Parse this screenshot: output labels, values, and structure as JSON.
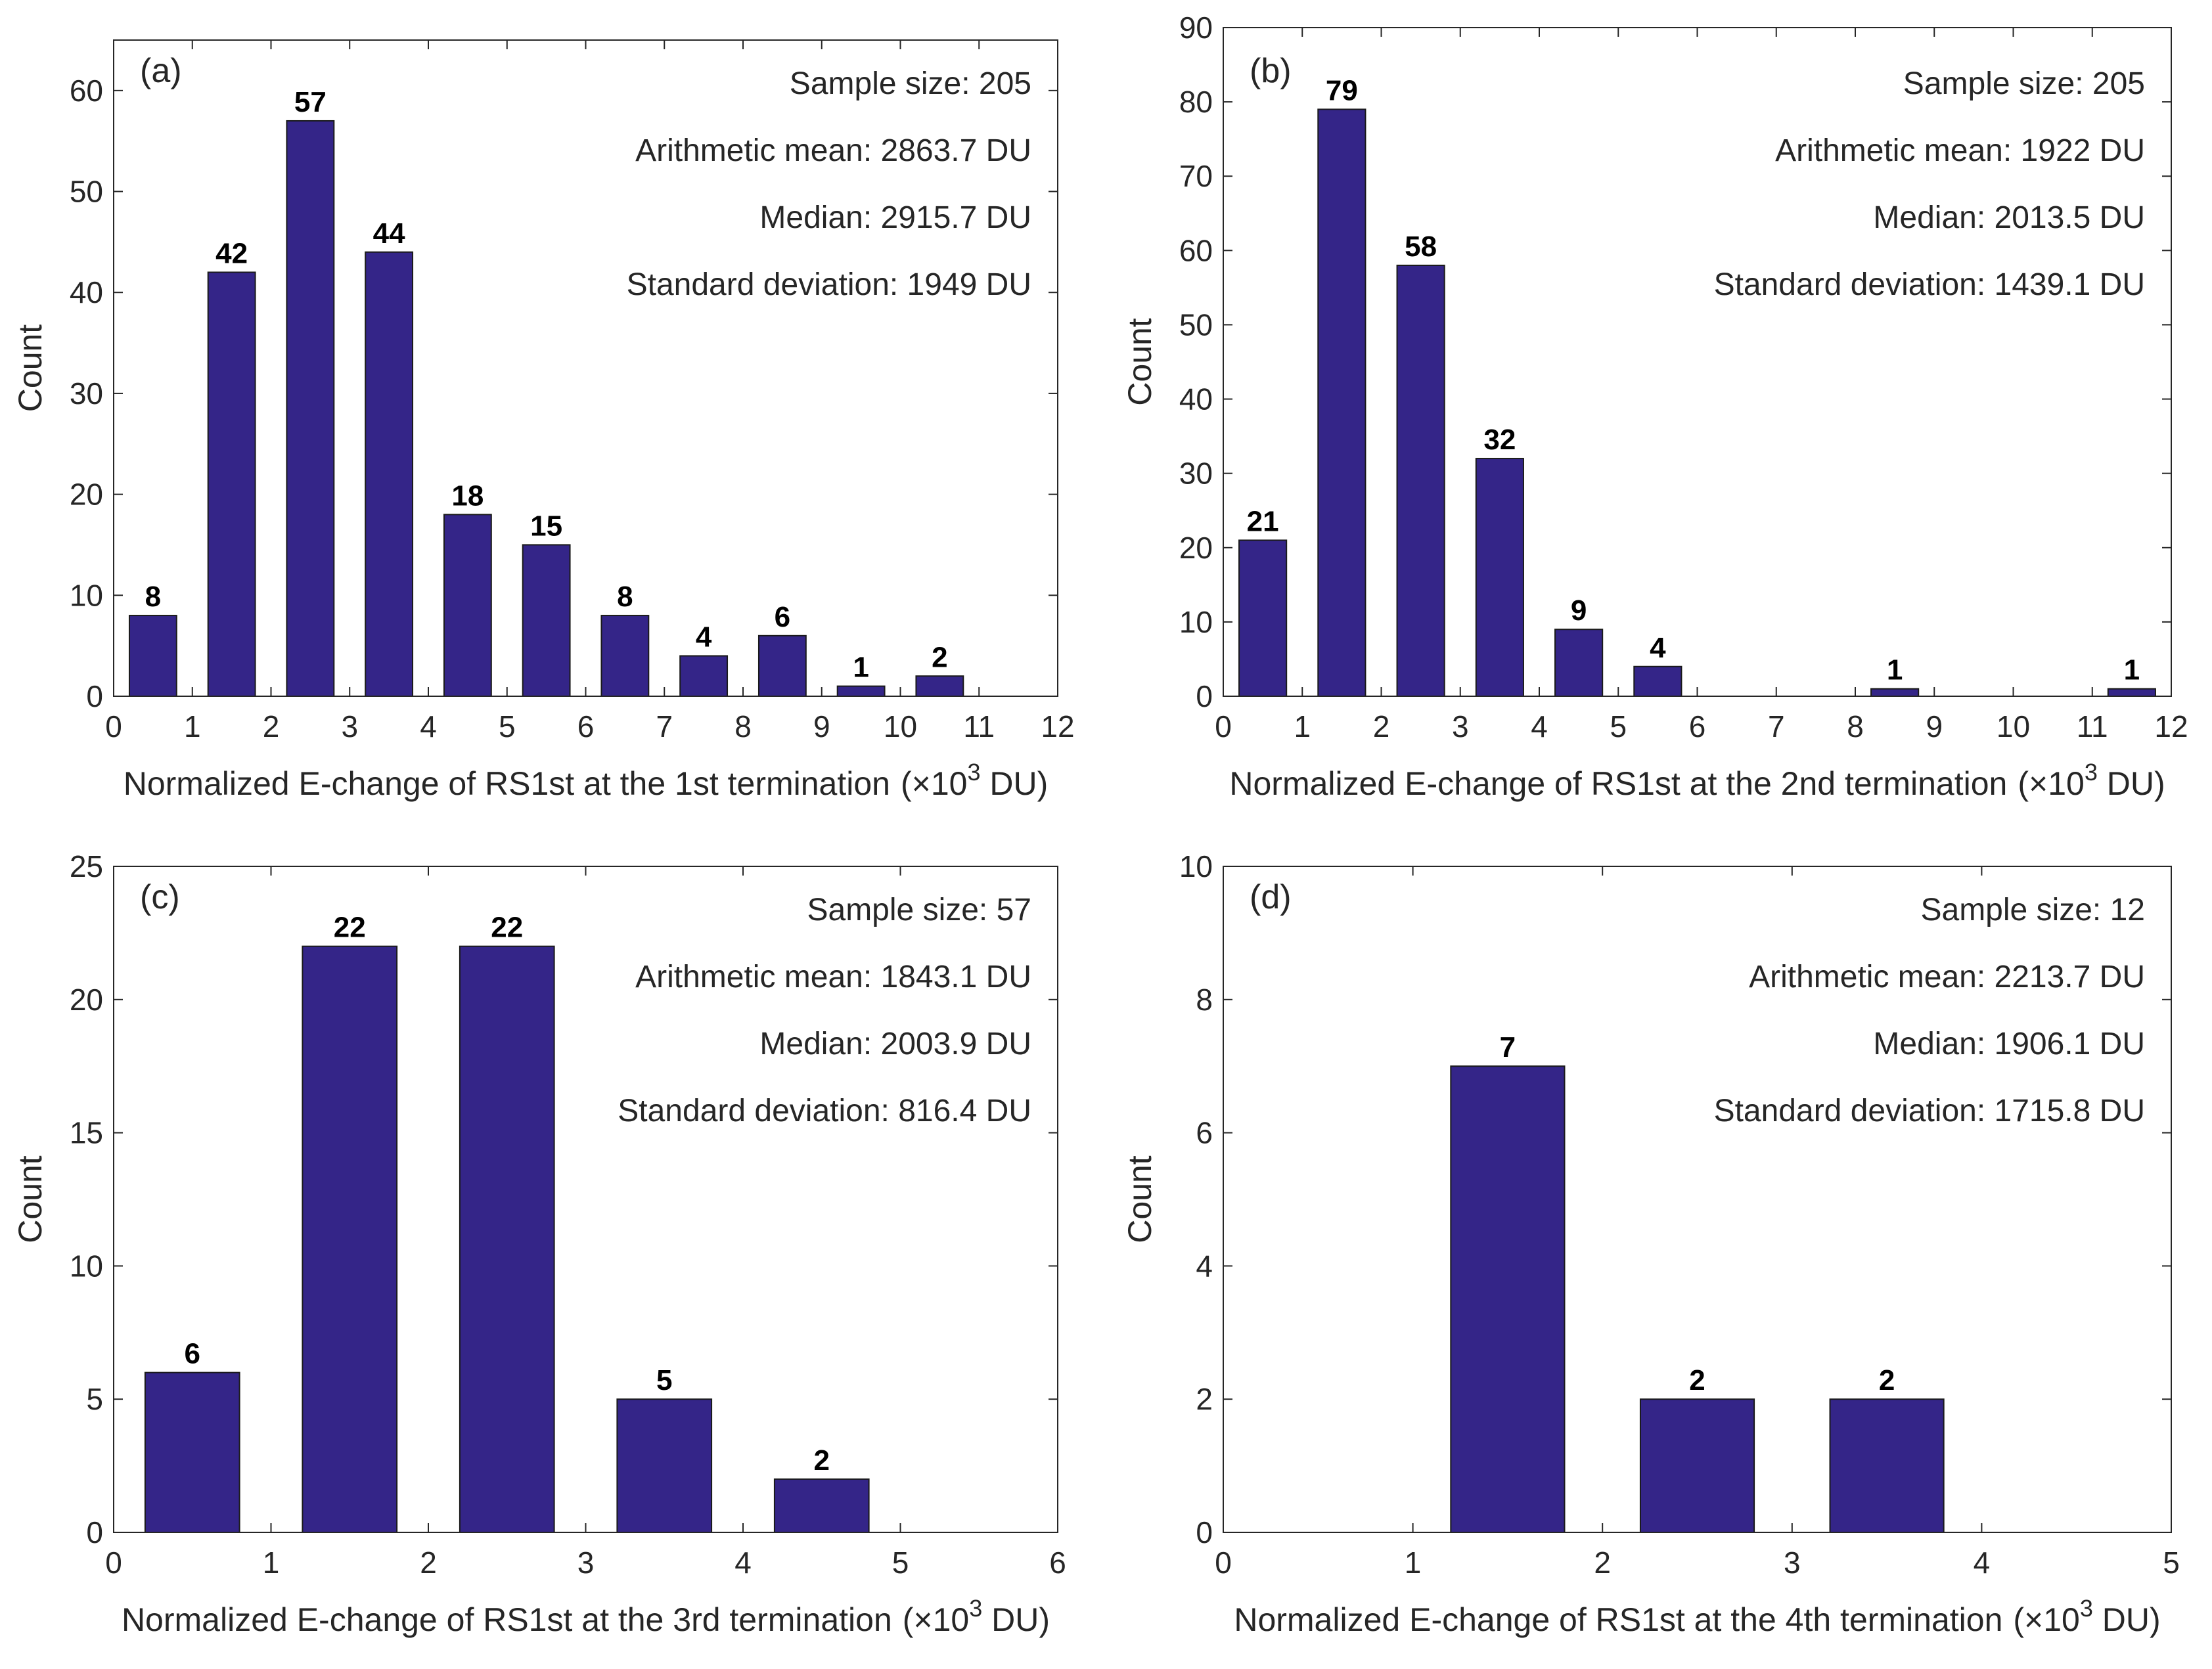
{
  "colors": {
    "bar": "#342588",
    "axis": "#262626",
    "text": "#262626"
  },
  "chart_data": [
    {
      "type": "bar",
      "panel_label": "(a)",
      "xlabel": "Normalized E-change of RS1st at the 1st termination",
      "xunit_prefix": "(×10",
      "xunit_exp": "3",
      "xunit_suffix": " DU)",
      "ylabel": "Count",
      "xlim": [
        0,
        12
      ],
      "ylim": [
        0,
        65
      ],
      "xticks": [
        0,
        1,
        2,
        3,
        4,
        5,
        6,
        7,
        8,
        9,
        10,
        11,
        12
      ],
      "yticks": [
        0,
        10,
        20,
        30,
        40,
        50,
        60
      ],
      "bin_width": 1,
      "bar_width": 0.6,
      "bins": [
        {
          "center": 0.5,
          "value": 8
        },
        {
          "center": 1.5,
          "value": 42
        },
        {
          "center": 2.5,
          "value": 57
        },
        {
          "center": 3.5,
          "value": 44
        },
        {
          "center": 4.5,
          "value": 18
        },
        {
          "center": 5.5,
          "value": 15
        },
        {
          "center": 6.5,
          "value": 8
        },
        {
          "center": 7.5,
          "value": 4
        },
        {
          "center": 8.5,
          "value": 6
        },
        {
          "center": 9.5,
          "value": 1
        },
        {
          "center": 10.5,
          "value": 2
        },
        {
          "center": 11.5,
          "value": 0
        }
      ],
      "stats": [
        "Sample size: 205",
        "Arithmetic mean: 2863.7 DU",
        "Median: 2915.7 DU",
        "Standard deviation: 1949 DU"
      ]
    },
    {
      "type": "bar",
      "panel_label": "(b)",
      "xlabel": "Normalized E-change of RS1st at the 2nd termination",
      "xunit_prefix": "(×10",
      "xunit_exp": "3",
      "xunit_suffix": " DU)",
      "ylabel": "Count",
      "xlim": [
        0,
        12
      ],
      "ylim": [
        0,
        90
      ],
      "xticks": [
        0,
        1,
        2,
        3,
        4,
        5,
        6,
        7,
        8,
        9,
        10,
        11,
        12
      ],
      "yticks": [
        0,
        10,
        20,
        30,
        40,
        50,
        60,
        70,
        80,
        90
      ],
      "bin_width": 1,
      "bar_width": 0.6,
      "bins": [
        {
          "center": 0.5,
          "value": 21
        },
        {
          "center": 1.5,
          "value": 79
        },
        {
          "center": 2.5,
          "value": 58
        },
        {
          "center": 3.5,
          "value": 32
        },
        {
          "center": 4.5,
          "value": 9
        },
        {
          "center": 5.5,
          "value": 4
        },
        {
          "center": 6.5,
          "value": 0
        },
        {
          "center": 7.5,
          "value": 0
        },
        {
          "center": 8.5,
          "value": 1
        },
        {
          "center": 9.5,
          "value": 0
        },
        {
          "center": 10.5,
          "value": 0
        },
        {
          "center": 11.5,
          "value": 1
        }
      ],
      "stats": [
        "Sample size: 205",
        "Arithmetic mean: 1922 DU",
        "Median: 2013.5 DU",
        "Standard deviation: 1439.1 DU"
      ]
    },
    {
      "type": "bar",
      "panel_label": "(c)",
      "xlabel": "Normalized E-change of RS1st at the 3rd termination",
      "xunit_prefix": "(×10",
      "xunit_exp": "3",
      "xunit_suffix": " DU)",
      "ylabel": "Count",
      "xlim": [
        0,
        6
      ],
      "ylim": [
        0,
        25
      ],
      "xticks": [
        0,
        1,
        2,
        3,
        4,
        5,
        6
      ],
      "yticks": [
        0,
        5,
        10,
        15,
        20,
        25
      ],
      "bin_width": 1,
      "bar_width": 0.6,
      "bins": [
        {
          "center": 0.5,
          "value": 6
        },
        {
          "center": 1.5,
          "value": 22
        },
        {
          "center": 2.5,
          "value": 22
        },
        {
          "center": 3.5,
          "value": 5
        },
        {
          "center": 4.5,
          "value": 2
        },
        {
          "center": 5.5,
          "value": 0
        }
      ],
      "stats": [
        "Sample size: 57",
        "Arithmetic mean: 1843.1 DU",
        "Median: 2003.9 DU",
        "Standard deviation: 816.4 DU"
      ]
    },
    {
      "type": "bar",
      "panel_label": "(d)",
      "xlabel": "Normalized E-change of RS1st at the 4th termination",
      "xunit_prefix": "(×10",
      "xunit_exp": "3",
      "xunit_suffix": " DU)",
      "ylabel": "Count",
      "xlim": [
        0,
        5
      ],
      "ylim": [
        0,
        10
      ],
      "xticks": [
        0,
        1,
        2,
        3,
        4,
        5
      ],
      "yticks": [
        0,
        2,
        4,
        6,
        8,
        10
      ],
      "bin_width": 1,
      "bar_width": 0.6,
      "bins": [
        {
          "center": 0.5,
          "value": 0
        },
        {
          "center": 1.5,
          "value": 7
        },
        {
          "center": 2.5,
          "value": 2
        },
        {
          "center": 3.5,
          "value": 2
        },
        {
          "center": 4.5,
          "value": 0
        }
      ],
      "stats": [
        "Sample size: 12",
        "Arithmetic mean: 2213.7 DU",
        "Median: 1906.1 DU",
        "Standard deviation: 1715.8 DU"
      ]
    }
  ]
}
